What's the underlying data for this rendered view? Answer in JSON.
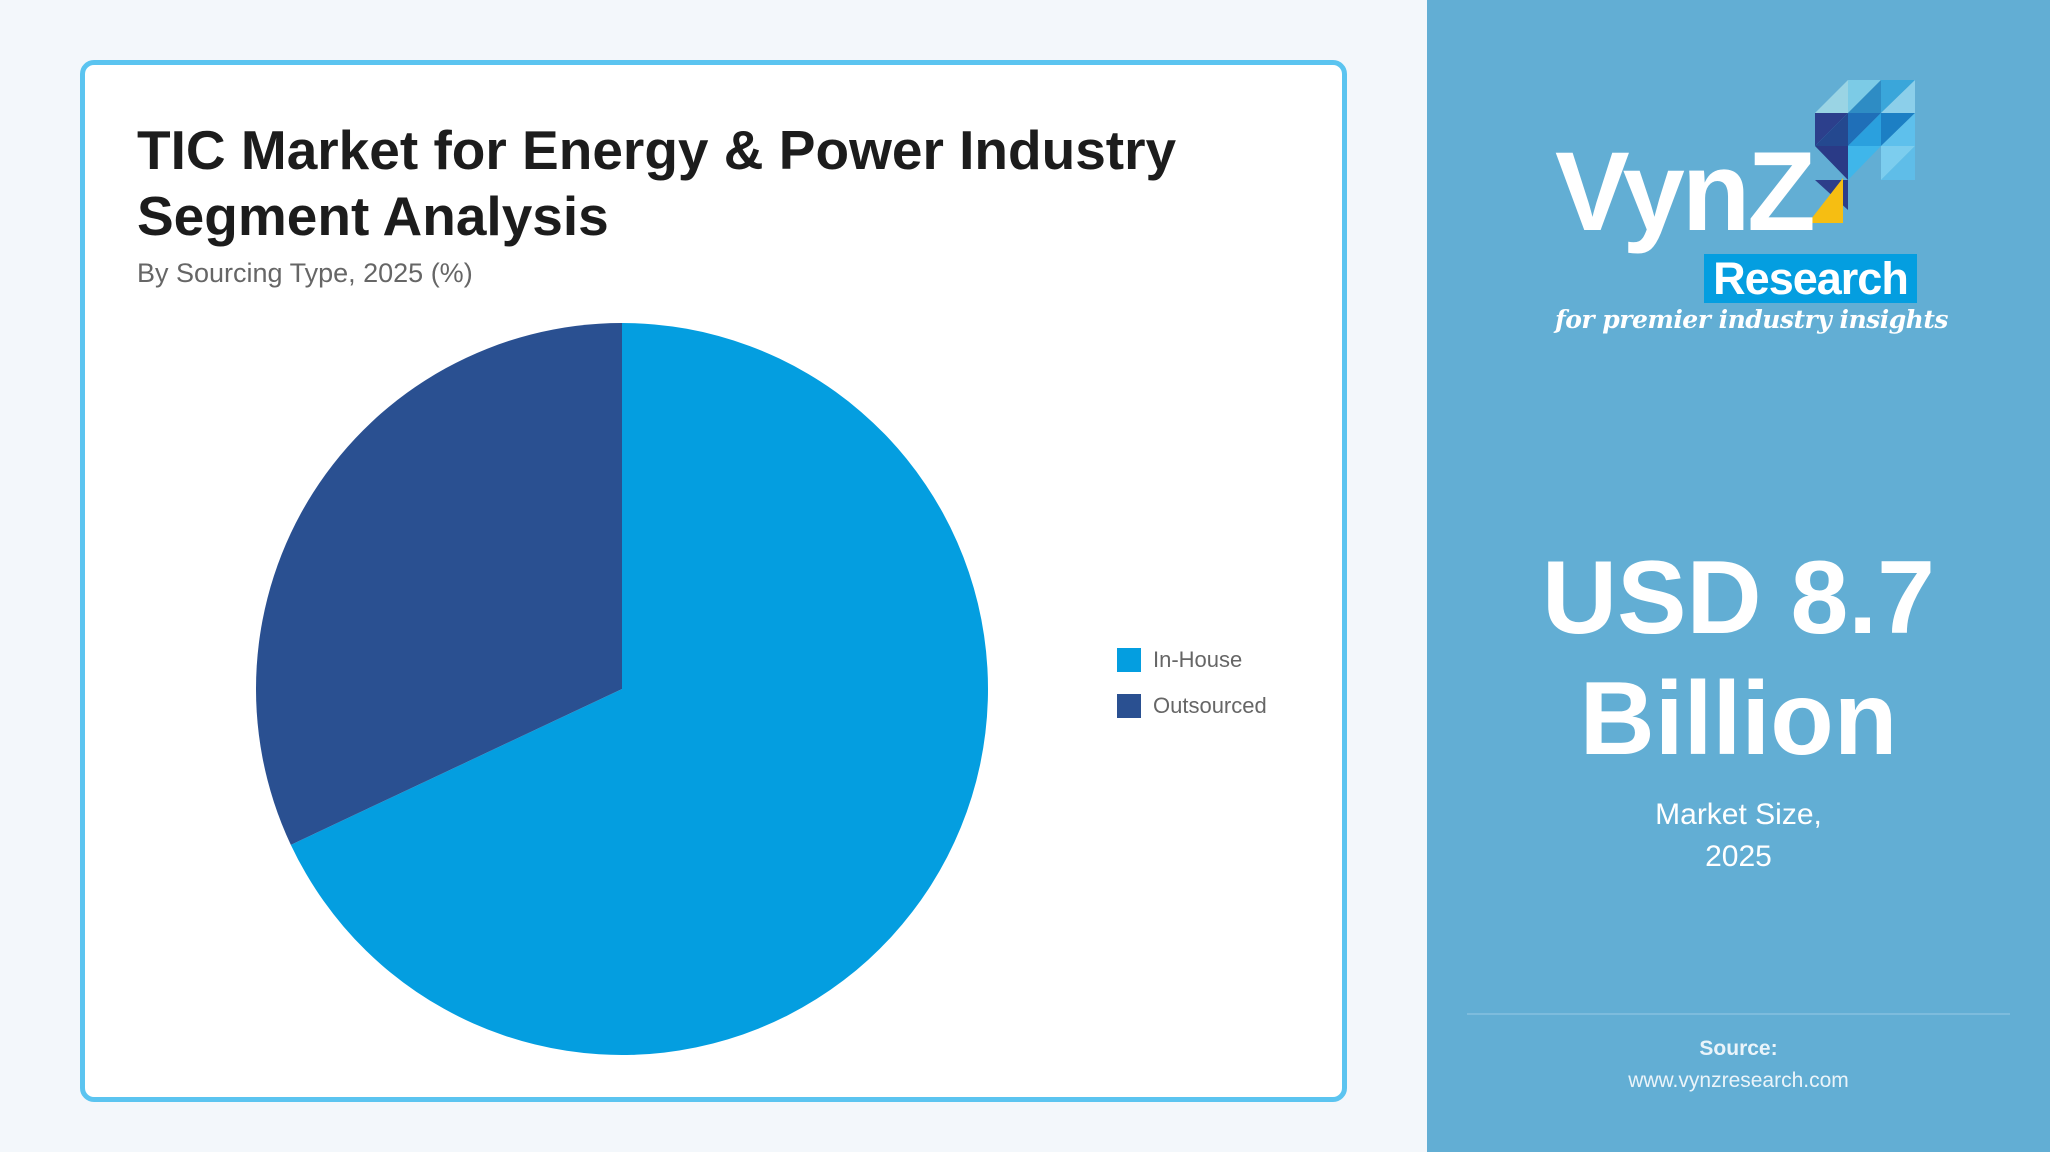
{
  "chart": {
    "title_line1": "TIC Market for Energy & Power Industry",
    "title_line2": "Segment Analysis",
    "subtitle": "By Sourcing Type, 2025 (%)",
    "legend": [
      {
        "label": "In-House",
        "color": "#049EE0"
      },
      {
        "label": "Outsourced",
        "color": "#2A5091"
      }
    ]
  },
  "chart_data": {
    "type": "pie",
    "title": "TIC Market for Energy & Power Industry Segment Analysis",
    "subtitle": "By Sourcing Type, 2025 (%)",
    "categories": [
      "In-House",
      "Outsourced"
    ],
    "values": [
      68,
      32
    ],
    "colors": [
      "#049EE0",
      "#2A5091"
    ],
    "start_angle": "12 o'clock, clockwise",
    "legend_position": "right",
    "data_labels": false
  },
  "brand": {
    "wordmark": "VynZ",
    "sub_wordmark": "Research",
    "tagline": "for premier industry insights"
  },
  "market": {
    "value_line1": "USD 8.7",
    "value_line2": "Billion",
    "caption_line1": "Market Size,",
    "caption_line2": "2025"
  },
  "source": {
    "label": "Source:",
    "url": "www.vynzresearch.com"
  },
  "colors": {
    "page_bg": "#F3F7FB",
    "card_border": "#5BC4F0",
    "panel_bg": "#62AED4",
    "accent": "#049EE0",
    "dark_blue": "#2A5091",
    "logo_yellow": "#F6BE12"
  }
}
